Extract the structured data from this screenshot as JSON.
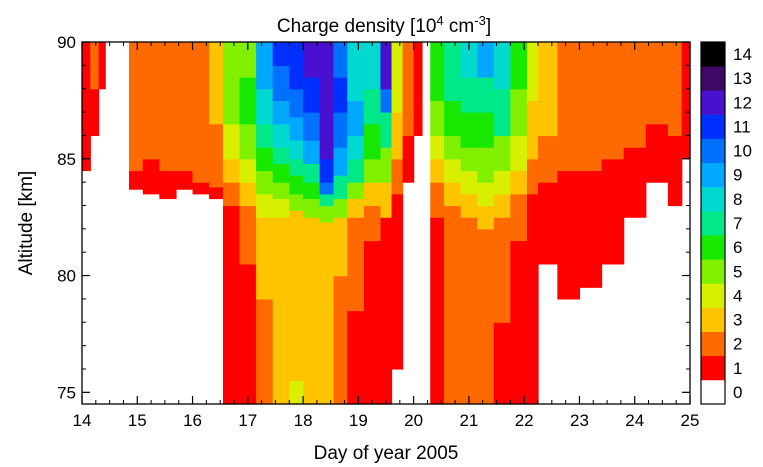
{
  "chart_data": {
    "type": "heatmap",
    "title": "Charge density [10",
    "title_exp1": "4",
    "title_unit": " cm",
    "title_exp2": "-3",
    "title_end": "]",
    "xlabel": "Day of year 2005",
    "ylabel": "Altitude [km]",
    "xlim": [
      14,
      25
    ],
    "ylim": [
      74.5,
      90
    ],
    "xticks": [
      "14",
      "15",
      "16",
      "17",
      "18",
      "19",
      "20",
      "21",
      "22",
      "23",
      "24",
      "25"
    ],
    "yticks": [
      "75",
      "80",
      "85",
      "90"
    ],
    "colorbar": {
      "levels": [
        "0",
        "1",
        "2",
        "3",
        "4",
        "5",
        "6",
        "7",
        "8",
        "9",
        "10",
        "11",
        "12",
        "13",
        "14"
      ],
      "colors": [
        "#ffffff",
        "#ff0000",
        "#ff6a00",
        "#ffc400",
        "#d8f000",
        "#80f000",
        "#18e800",
        "#00e888",
        "#00d8d0",
        "#00a8ff",
        "#0070ff",
        "#0030ff",
        "#4a10d0",
        "#3c0a64",
        "#000000"
      ]
    },
    "profiles": [
      {
        "x0": 14.0,
        "x1": 14.15,
        "bottom": 84.5,
        "levels": [
          [
            1,
            90
          ]
        ]
      },
      {
        "x0": 14.15,
        "x1": 14.3,
        "bottom": 86.0,
        "levels": [
          [
            1,
            88.0
          ],
          [
            2,
            90
          ]
        ]
      },
      {
        "x0": 14.3,
        "x1": 14.42,
        "bottom": 88.0,
        "levels": [
          [
            1,
            90
          ]
        ]
      },
      {
        "x0": 14.85,
        "x1": 15.1,
        "bottom": 83.7,
        "levels": [
          [
            1,
            84.5
          ],
          [
            2,
            90
          ]
        ]
      },
      {
        "x0": 15.1,
        "x1": 15.4,
        "bottom": 83.5,
        "levels": [
          [
            1,
            85.0
          ],
          [
            2,
            90
          ]
        ]
      },
      {
        "x0": 15.4,
        "x1": 15.7,
        "bottom": 83.3,
        "levels": [
          [
            1,
            84.5
          ],
          [
            2,
            90
          ]
        ]
      },
      {
        "x0": 15.7,
        "x1": 16.0,
        "bottom": 83.7,
        "levels": [
          [
            1,
            84.5
          ],
          [
            2,
            90
          ]
        ]
      },
      {
        "x0": 16.0,
        "x1": 16.3,
        "bottom": 83.5,
        "levels": [
          [
            1,
            84.0
          ],
          [
            2,
            90
          ]
        ]
      },
      {
        "x0": 16.3,
        "x1": 16.55,
        "bottom": 83.3,
        "levels": [
          [
            1,
            83.8
          ],
          [
            2,
            86.5
          ],
          [
            3,
            90
          ]
        ]
      },
      {
        "x0": 16.55,
        "x1": 16.85,
        "bottom": 74.5,
        "levels": [
          [
            1,
            83.0
          ],
          [
            2,
            84.0
          ],
          [
            3,
            85.0
          ],
          [
            4,
            86.5
          ],
          [
            5,
            90
          ]
        ]
      },
      {
        "x0": 16.85,
        "x1": 17.15,
        "bottom": 74.5,
        "levels": [
          [
            1,
            80.5
          ],
          [
            2,
            83.0
          ],
          [
            3,
            84.0
          ],
          [
            4,
            85.0
          ],
          [
            5,
            86.5
          ],
          [
            6,
            88.5
          ],
          [
            5,
            90
          ]
        ]
      },
      {
        "x0": 17.15,
        "x1": 17.45,
        "bottom": 74.5,
        "levels": [
          [
            2,
            79.0
          ],
          [
            3,
            82.5
          ],
          [
            4,
            83.5
          ],
          [
            5,
            84.5
          ],
          [
            6,
            85.5
          ],
          [
            7,
            86.5
          ],
          [
            8,
            88.0
          ],
          [
            9,
            90
          ]
        ]
      },
      {
        "x0": 17.45,
        "x1": 17.75,
        "bottom": 74.5,
        "levels": [
          [
            3,
            82.5
          ],
          [
            4,
            83.3
          ],
          [
            5,
            84.0
          ],
          [
            6,
            84.8
          ],
          [
            7,
            85.5
          ],
          [
            8,
            86.5
          ],
          [
            9,
            87.5
          ],
          [
            10,
            89.0
          ],
          [
            11,
            90
          ]
        ]
      },
      {
        "x0": 17.75,
        "x1": 18.0,
        "bottom": 74.5,
        "levels": [
          [
            4,
            75.5
          ],
          [
            3,
            82.8
          ],
          [
            5,
            83.5
          ],
          [
            6,
            84.3
          ],
          [
            7,
            85.0
          ],
          [
            8,
            85.8
          ],
          [
            9,
            86.8
          ],
          [
            10,
            88.0
          ],
          [
            11,
            90
          ]
        ]
      },
      {
        "x0": 18.0,
        "x1": 18.3,
        "bottom": 74.5,
        "levels": [
          [
            3,
            82.5
          ],
          [
            5,
            83.3
          ],
          [
            6,
            84.0
          ],
          [
            7,
            84.8
          ],
          [
            9,
            85.8
          ],
          [
            10,
            87.0
          ],
          [
            11,
            88.5
          ],
          [
            12,
            90
          ]
        ]
      },
      {
        "x0": 18.3,
        "x1": 18.55,
        "bottom": 74.5,
        "levels": [
          [
            3,
            82.3
          ],
          [
            5,
            83.0
          ],
          [
            7,
            83.5
          ],
          [
            10,
            84.0
          ],
          [
            11,
            85.0
          ],
          [
            12,
            90
          ]
        ]
      },
      {
        "x0": 18.55,
        "x1": 18.8,
        "bottom": 74.5,
        "levels": [
          [
            2,
            80.0
          ],
          [
            3,
            82.5
          ],
          [
            5,
            83.3
          ],
          [
            7,
            84.3
          ],
          [
            9,
            85.5
          ],
          [
            10,
            87.0
          ],
          [
            11,
            88.5
          ],
          [
            10,
            90
          ]
        ]
      },
      {
        "x0": 18.8,
        "x1": 19.1,
        "bottom": 74.5,
        "levels": [
          [
            1,
            78.5
          ],
          [
            2,
            82.5
          ],
          [
            3,
            83.3
          ],
          [
            5,
            84.0
          ],
          [
            7,
            85.0
          ],
          [
            8,
            86.0
          ],
          [
            9,
            87.5
          ],
          [
            8,
            90
          ]
        ]
      },
      {
        "x0": 19.1,
        "x1": 19.4,
        "bottom": 74.5,
        "levels": [
          [
            1,
            81.5
          ],
          [
            2,
            83.0
          ],
          [
            3,
            84.0
          ],
          [
            5,
            85.0
          ],
          [
            6,
            86.5
          ],
          [
            7,
            88.0
          ],
          [
            8,
            90
          ]
        ]
      },
      {
        "x0": 19.4,
        "x1": 19.6,
        "bottom": 74.5,
        "levels": [
          [
            1,
            82.5
          ],
          [
            3,
            84.0
          ],
          [
            5,
            85.5
          ],
          [
            7,
            87.0
          ],
          [
            10,
            88.0
          ],
          [
            12,
            90
          ]
        ]
      },
      {
        "x0": 19.6,
        "x1": 19.8,
        "bottom": 76.0,
        "levels": [
          [
            1,
            83.5
          ],
          [
            2,
            85.0
          ],
          [
            3,
            87.0
          ],
          [
            4,
            90
          ]
        ]
      },
      {
        "x0": 19.8,
        "x1": 20.0,
        "bottom": 84.0,
        "levels": [
          [
            1,
            86.0
          ],
          [
            2,
            90
          ]
        ]
      },
      {
        "x0": 20.0,
        "x1": 20.15,
        "bottom": 86.0,
        "levels": [
          [
            1,
            90
          ]
        ]
      },
      {
        "x0": 20.3,
        "x1": 20.55,
        "bottom": 74.5,
        "levels": [
          [
            1,
            82.5
          ],
          [
            2,
            84.0
          ],
          [
            3,
            85.0
          ],
          [
            4,
            86.0
          ],
          [
            5,
            87.5
          ],
          [
            6,
            90
          ]
        ]
      },
      {
        "x0": 20.55,
        "x1": 20.85,
        "bottom": 74.5,
        "levels": [
          [
            2,
            83.0
          ],
          [
            3,
            84.0
          ],
          [
            4,
            85.0
          ],
          [
            5,
            86.0
          ],
          [
            6,
            87.5
          ],
          [
            7,
            90
          ]
        ]
      },
      {
        "x0": 20.85,
        "x1": 21.15,
        "bottom": 74.5,
        "levels": [
          [
            2,
            82.5
          ],
          [
            3,
            83.5
          ],
          [
            4,
            84.5
          ],
          [
            5,
            85.5
          ],
          [
            6,
            87.0
          ],
          [
            7,
            88.5
          ],
          [
            8,
            90
          ]
        ]
      },
      {
        "x0": 21.15,
        "x1": 21.45,
        "bottom": 74.5,
        "levels": [
          [
            2,
            82.0
          ],
          [
            3,
            83.0
          ],
          [
            4,
            84.0
          ],
          [
            5,
            85.5
          ],
          [
            6,
            87.0
          ],
          [
            7,
            88.5
          ],
          [
            9,
            90
          ]
        ]
      },
      {
        "x0": 21.45,
        "x1": 21.75,
        "bottom": 74.5,
        "levels": [
          [
            1,
            78.0
          ],
          [
            2,
            82.5
          ],
          [
            3,
            83.5
          ],
          [
            4,
            84.5
          ],
          [
            5,
            86.0
          ],
          [
            7,
            88.0
          ],
          [
            8,
            90
          ]
        ]
      },
      {
        "x0": 21.75,
        "x1": 22.05,
        "bottom": 74.5,
        "levels": [
          [
            1,
            81.5
          ],
          [
            2,
            83.5
          ],
          [
            3,
            84.5
          ],
          [
            4,
            86.0
          ],
          [
            5,
            88.0
          ],
          [
            6,
            90
          ]
        ]
      },
      {
        "x0": 22.05,
        "x1": 22.25,
        "bottom": 74.5,
        "levels": [
          [
            1,
            83.5
          ],
          [
            2,
            85.0
          ],
          [
            3,
            87.5
          ],
          [
            4,
            90
          ]
        ]
      },
      {
        "x0": 22.25,
        "x1": 22.6,
        "bottom": 80.5,
        "levels": [
          [
            1,
            84.0
          ],
          [
            2,
            86.0
          ],
          [
            3,
            90
          ]
        ]
      },
      {
        "x0": 22.6,
        "x1": 23.0,
        "bottom": 79.0,
        "levels": [
          [
            1,
            84.5
          ],
          [
            2,
            90
          ]
        ]
      },
      {
        "x0": 23.0,
        "x1": 23.4,
        "bottom": 79.5,
        "levels": [
          [
            1,
            84.5
          ],
          [
            2,
            90
          ]
        ]
      },
      {
        "x0": 23.4,
        "x1": 23.8,
        "bottom": 80.5,
        "levels": [
          [
            1,
            85.0
          ],
          [
            2,
            90
          ]
        ]
      },
      {
        "x0": 23.8,
        "x1": 24.2,
        "bottom": 82.5,
        "levels": [
          [
            1,
            85.5
          ],
          [
            2,
            90
          ]
        ]
      },
      {
        "x0": 24.2,
        "x1": 24.6,
        "bottom": 84.0,
        "levels": [
          [
            1,
            86.5
          ],
          [
            2,
            90
          ]
        ]
      },
      {
        "x0": 24.6,
        "x1": 24.85,
        "bottom": 83.0,
        "levels": [
          [
            1,
            86.0
          ],
          [
            2,
            90
          ]
        ]
      },
      {
        "x0": 24.85,
        "x1": 25.0,
        "bottom": 85.0,
        "levels": [
          [
            1,
            90
          ]
        ]
      }
    ]
  }
}
